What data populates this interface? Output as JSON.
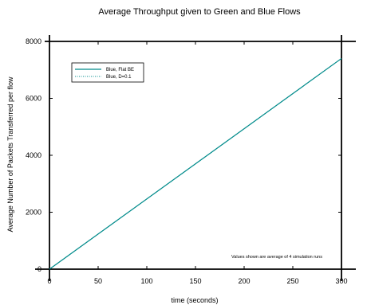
{
  "chart_data": {
    "type": "line",
    "title": "Average Throughput given to Green and Blue Flows",
    "xlabel": "time (seconds)",
    "ylabel": "Average Number of Packets Transferred per flow",
    "xlim": [
      0,
      300
    ],
    "ylim": [
      0,
      8000
    ],
    "x_ticks": [
      "0",
      "50",
      "100",
      "150",
      "200",
      "250",
      "300"
    ],
    "y_ticks": [
      "0",
      "2000",
      "4000",
      "6000",
      "8000"
    ],
    "grid": false,
    "legend_position": "top-left",
    "annotation": "Values shown are average of 4 simulation runs",
    "series": [
      {
        "name": "Blue, Flat BE",
        "color": "#008b8b",
        "line_style": "solid",
        "x": [
          0,
          300
        ],
        "y": [
          0,
          7400
        ]
      },
      {
        "name": "Blue, D=0.1",
        "color": "#008b8b",
        "line_style": "dotted",
        "x": [
          0,
          300
        ],
        "y": [
          0,
          7400
        ]
      }
    ]
  }
}
